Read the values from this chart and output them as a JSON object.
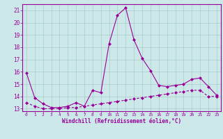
{
  "xlabel": "Windchill (Refroidissement éolien,°C)",
  "hours": [
    0,
    1,
    2,
    3,
    4,
    5,
    6,
    7,
    8,
    9,
    10,
    11,
    12,
    13,
    14,
    15,
    16,
    17,
    18,
    19,
    20,
    21,
    22,
    23
  ],
  "temp_line": [
    15.9,
    13.9,
    13.4,
    13.1,
    13.1,
    13.2,
    13.5,
    13.2,
    14.5,
    14.3,
    18.3,
    20.6,
    21.2,
    18.6,
    17.1,
    16.1,
    14.9,
    14.8,
    14.9,
    15.0,
    15.4,
    15.5,
    14.8,
    14.1
  ],
  "wind_line": [
    13.5,
    13.2,
    13.0,
    13.0,
    13.0,
    13.1,
    13.1,
    13.2,
    13.3,
    13.4,
    13.5,
    13.6,
    13.7,
    13.8,
    13.9,
    14.0,
    14.1,
    14.2,
    14.3,
    14.4,
    14.5,
    14.5,
    14.0,
    14.0
  ],
  "line_color": "#990099",
  "bg_color": "#cce8e8",
  "grid_color": "#aacccc",
  "ylim": [
    12.8,
    21.5
  ],
  "xlim": [
    -0.5,
    23.5
  ],
  "yticks": [
    13,
    14,
    15,
    16,
    17,
    18,
    19,
    20,
    21
  ],
  "xticks": [
    0,
    1,
    2,
    3,
    4,
    5,
    6,
    7,
    8,
    9,
    10,
    11,
    12,
    13,
    14,
    15,
    16,
    17,
    18,
    19,
    20,
    21,
    22,
    23
  ],
  "xlabel_fontsize": 5.5,
  "tick_fontsize": 5.5,
  "marker_size": 2.0,
  "line_width": 0.8
}
